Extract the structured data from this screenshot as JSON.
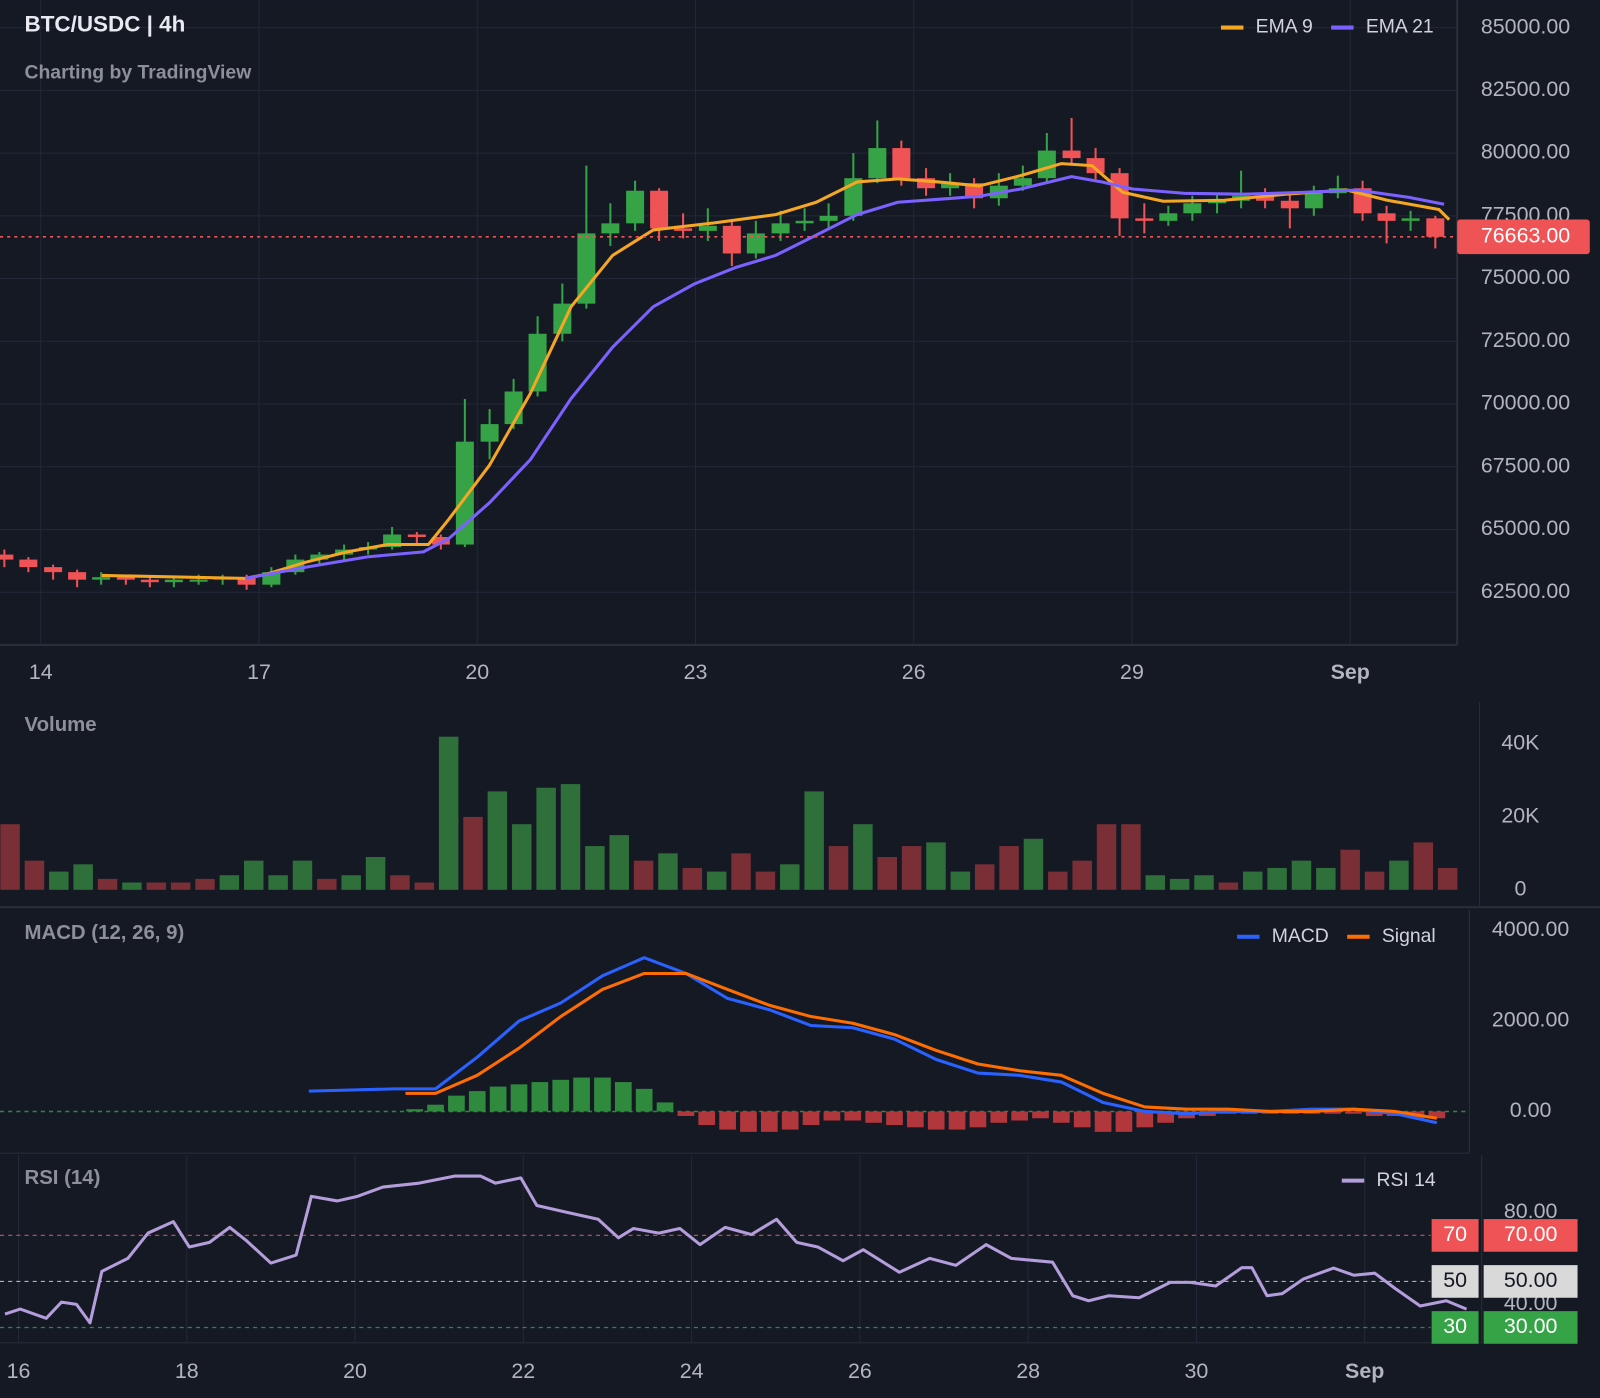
{
  "chart_data": [
    {
      "type": "candlestick",
      "title": "BTC/USDC | 4h",
      "subtitle": "Charting by TradingView",
      "x": [
        13.5,
        13.83,
        14.17,
        14.5,
        14.83,
        15.17,
        15.5,
        15.83,
        16.17,
        16.5,
        16.83,
        17.17,
        17.5,
        17.83,
        18.17,
        18.5,
        18.83,
        19.17,
        19.5,
        19.83,
        20.17,
        20.5,
        20.83,
        21.17,
        21.5,
        21.83,
        22.17,
        22.5,
        22.83,
        23.17,
        23.5,
        23.83,
        24.17,
        24.5,
        24.83,
        25.17,
        25.5,
        25.83,
        26.17,
        26.5,
        26.83,
        27.17,
        27.5,
        27.83,
        28.17,
        28.5,
        28.83,
        29.17,
        29.5,
        29.83,
        30.17,
        30.5,
        30.83,
        31.17,
        31.5,
        31.83,
        32.17,
        32.5,
        32.83,
        33.17
      ],
      "open": [
        64000,
        63800,
        63500,
        63300,
        63000,
        63100,
        63000,
        62900,
        63000,
        63000,
        63100,
        62800,
        63300,
        63800,
        64000,
        64200,
        64300,
        64800,
        64700,
        64400,
        68500,
        69200,
        70500,
        72800,
        74000,
        76800,
        77200,
        78500,
        77000,
        76900,
        77100,
        76000,
        76800,
        77200,
        77300,
        77500,
        79000,
        80200,
        79000,
        78600,
        78800,
        78200,
        78700,
        79000,
        80100,
        79800,
        79200,
        77400,
        77300,
        77600,
        78000,
        78100,
        78300,
        78100,
        77800,
        78400,
        78600,
        77600,
        77300,
        77400
      ],
      "high": [
        64200,
        63900,
        63600,
        63400,
        63300,
        63200,
        63100,
        63100,
        63200,
        63200,
        63200,
        63500,
        64000,
        64100,
        64400,
        64500,
        65100,
        64900,
        64800,
        70200,
        69800,
        71000,
        73500,
        74800,
        79500,
        78000,
        78900,
        78600,
        77600,
        77800,
        77300,
        77300,
        77700,
        77800,
        78000,
        80000,
        81300,
        80500,
        79400,
        79200,
        79000,
        79200,
        79500,
        80800,
        81400,
        80200,
        79400,
        78000,
        77900,
        78300,
        78400,
        79300,
        78600,
        78400,
        78700,
        79100,
        78900,
        77900,
        77700,
        77500
      ],
      "low": [
        63500,
        63300,
        63000,
        62700,
        62800,
        62800,
        62700,
        62700,
        62800,
        62800,
        62600,
        62700,
        63200,
        63600,
        63800,
        64000,
        64200,
        64400,
        64200,
        64300,
        67800,
        69000,
        70300,
        72500,
        73800,
        76300,
        76900,
        76500,
        76600,
        76500,
        75500,
        75800,
        76500,
        76900,
        77000,
        77300,
        78800,
        78700,
        78300,
        78300,
        77800,
        77900,
        78500,
        78800,
        79500,
        78900,
        76700,
        76800,
        77100,
        77300,
        77600,
        77800,
        77800,
        77000,
        77500,
        78200,
        77300,
        76400,
        76900,
        76200
      ],
      "close": [
        63800,
        63500,
        63300,
        63000,
        63100,
        63000,
        62900,
        63000,
        63000,
        63100,
        62800,
        63300,
        63800,
        64000,
        64200,
        64300,
        64800,
        64700,
        64400,
        68500,
        69200,
        70500,
        72800,
        74000,
        76800,
        77200,
        78500,
        77000,
        76900,
        77100,
        76000,
        76800,
        77200,
        77300,
        77500,
        79000,
        80200,
        79000,
        78600,
        78800,
        78200,
        78700,
        79000,
        80100,
        79800,
        79200,
        77400,
        77300,
        77600,
        78000,
        78100,
        78300,
        78100,
        77800,
        78400,
        78600,
        77600,
        77300,
        77400,
        76663
      ],
      "up_color": "#35a346",
      "down_color": "#f05356",
      "series": [
        {
          "name": "EMA 9",
          "color": "#f5a623",
          "x": [
            14.84,
            16.81,
            17.09,
            17.65,
            18.21,
            18.77,
            19.33,
            19.61,
            20.17,
            20.73,
            21.29,
            21.86,
            22.42,
            23.26,
            24.1,
            24.66,
            25.22,
            25.78,
            26.34,
            26.9,
            27.47,
            28.03,
            28.45,
            28.87,
            29.43,
            30.27,
            31.11,
            31.95,
            32.51,
            33.22,
            33.36
          ],
          "values": [
            63170,
            63050,
            63210,
            63700,
            64110,
            64400,
            64400,
            65410,
            67570,
            70420,
            73880,
            75920,
            76940,
            77220,
            77550,
            78040,
            78850,
            78970,
            78850,
            78690,
            79100,
            79580,
            79500,
            78440,
            78080,
            78120,
            78360,
            78530,
            78120,
            77750,
            77350
          ]
        },
        {
          "name": "EMA 21",
          "color": "#7b61ff",
          "x": [
            16.81,
            17.65,
            18.49,
            19.26,
            19.61,
            20.17,
            20.73,
            21.29,
            21.86,
            22.42,
            22.98,
            23.54,
            24.1,
            24.66,
            25.22,
            25.78,
            26.34,
            26.9,
            27.47,
            28.17,
            28.59,
            29.01,
            29.71,
            30.55,
            31.39,
            32.09,
            32.8,
            33.29
          ],
          "values": [
            63050,
            63500,
            63910,
            64110,
            64640,
            66070,
            67780,
            70220,
            72260,
            73880,
            74780,
            75430,
            75920,
            76730,
            77550,
            78040,
            78160,
            78280,
            78570,
            79060,
            78850,
            78570,
            78400,
            78360,
            78440,
            78530,
            78240,
            77960
          ]
        }
      ],
      "last_price": {
        "value": 76663,
        "label": "76663.00"
      },
      "legend": "upper right",
      "grid": true,
      "xlim": [
        13.44,
        33.47
      ],
      "ylim": [
        60400,
        86100
      ],
      "xticks": [
        14,
        17,
        20,
        23,
        26,
        29,
        {
          "value": 32,
          "label": "Sep"
        }
      ],
      "yticks": [
        {
          "value": 62500,
          "label": "62500.00"
        },
        {
          "value": 65000,
          "label": "65000.00"
        },
        {
          "value": 67500,
          "label": "67500.00"
        },
        {
          "value": 70000,
          "label": "70000.00"
        },
        {
          "value": 72500,
          "label": "72500.00"
        },
        {
          "value": 75000,
          "label": "75000.00"
        },
        {
          "value": 77500,
          "label": "77500.00"
        },
        {
          "value": 80000,
          "label": "80000.00"
        },
        {
          "value": 82500,
          "label": "82500.00"
        },
        {
          "value": 85000,
          "label": "85000.00"
        }
      ]
    },
    {
      "type": "bar",
      "title": "Volume",
      "x": [
        15.9,
        16.19,
        16.48,
        16.77,
        17.06,
        17.35,
        17.64,
        17.93,
        18.22,
        18.51,
        18.8,
        19.09,
        19.38,
        19.67,
        19.96,
        20.25,
        20.54,
        20.83,
        21.12,
        21.41,
        21.7,
        21.99,
        22.28,
        22.57,
        22.86,
        23.15,
        23.44,
        23.73,
        24.02,
        24.31,
        24.6,
        24.89,
        25.18,
        25.47,
        25.76,
        26.05,
        26.34,
        26.63,
        26.92,
        27.21,
        27.5,
        27.79,
        28.08,
        28.37,
        28.66,
        28.95,
        29.24,
        29.53,
        29.82,
        30.11,
        30.4,
        30.69,
        30.98,
        31.27,
        31.56,
        31.85,
        32.14,
        32.43,
        32.72,
        33.01
      ],
      "values": [
        18000,
        8000,
        5000,
        7000,
        3000,
        2000,
        2000,
        2000,
        3000,
        4000,
        8000,
        4000,
        8000,
        3000,
        4000,
        9000,
        4000,
        2000,
        42000,
        20000,
        27000,
        18000,
        28000,
        29000,
        12000,
        15000,
        8000,
        10000,
        6000,
        5000,
        10000,
        5000,
        7000,
        27000,
        12000,
        18000,
        9000,
        12000,
        13000,
        5000,
        7000,
        12000,
        14000,
        5000,
        8000,
        18000,
        18000,
        4000,
        3000,
        4000,
        2000,
        5000,
        6000,
        8000,
        6000,
        11000,
        5000,
        8000,
        13000,
        6000
      ],
      "colors": [
        "#7a2e35",
        "#7a2e35",
        "#2f6f3a",
        "#2f6f3a",
        "#7a2e35",
        "#2f6f3a",
        "#7a2e35",
        "#7a2e35",
        "#7a2e35",
        "#2f6f3a",
        "#2f6f3a",
        "#2f6f3a",
        "#2f6f3a",
        "#7a2e35",
        "#2f6f3a",
        "#2f6f3a",
        "#7a2e35",
        "#7a2e35",
        "#2f6f3a",
        "#7a2e35",
        "#2f6f3a",
        "#2f6f3a",
        "#2f6f3a",
        "#2f6f3a",
        "#2f6f3a",
        "#2f6f3a",
        "#7a2e35",
        "#2f6f3a",
        "#7a2e35",
        "#2f6f3a",
        "#7a2e35",
        "#7a2e35",
        "#2f6f3a",
        "#2f6f3a",
        "#7a2e35",
        "#2f6f3a",
        "#7a2e35",
        "#7a2e35",
        "#2f6f3a",
        "#2f6f3a",
        "#7a2e35",
        "#7a2e35",
        "#2f6f3a",
        "#7a2e35",
        "#7a2e35",
        "#7a2e35",
        "#7a2e35",
        "#2f6f3a",
        "#2f6f3a",
        "#2f6f3a",
        "#7a2e35",
        "#2f6f3a",
        "#2f6f3a",
        "#2f6f3a",
        "#2f6f3a",
        "#7a2e35",
        "#7a2e35",
        "#2f6f3a",
        "#7a2e35",
        "#7a2e35"
      ],
      "xlim": [
        15.78,
        33.39
      ],
      "ylim": [
        0,
        51500
      ],
      "yticks": [
        0,
        {
          "value": 20000,
          "label": "20K"
        },
        {
          "value": 40000,
          "label": "40K"
        }
      ]
    },
    {
      "type": "line",
      "title": "MACD (12, 26, 9)",
      "series": [
        {
          "name": "MACD",
          "color": "#2962ff",
          "x": [
            19.48,
            20.5,
            21.0,
            21.5,
            22.0,
            22.5,
            23.0,
            23.5,
            24.0,
            24.5,
            25.0,
            25.5,
            26.0,
            26.5,
            27.0,
            27.5,
            28.0,
            28.5,
            29.0,
            29.5,
            30.0,
            30.5,
            31.0,
            31.5,
            32.0,
            32.5,
            33.0
          ],
          "values": [
            450,
            500,
            500,
            1200,
            2000,
            2400,
            3000,
            3400,
            3050,
            2500,
            2250,
            1900,
            1850,
            1600,
            1150,
            850,
            800,
            650,
            200,
            0,
            -50,
            0,
            0,
            50,
            50,
            -50,
            -250
          ]
        },
        {
          "name": "Signal",
          "color": "#ff6d00",
          "x": [
            20.64,
            21.0,
            21.5,
            22.0,
            22.5,
            23.0,
            23.5,
            24.0,
            24.5,
            25.0,
            25.5,
            26.0,
            26.5,
            27.0,
            27.5,
            28.0,
            28.5,
            29.0,
            29.5,
            30.0,
            30.5,
            31.0,
            31.5,
            32.0,
            32.5,
            33.0
          ],
          "values": [
            400,
            400,
            800,
            1400,
            2100,
            2700,
            3050,
            3050,
            2700,
            2350,
            2100,
            1950,
            1700,
            1350,
            1050,
            900,
            800,
            400,
            100,
            50,
            50,
            0,
            0,
            50,
            0,
            -150
          ]
        }
      ],
      "histogram": {
        "up_color": "#2f8a3e",
        "down_color": "#b2373c",
        "x": [
          20.75,
          21.0,
          21.25,
          21.5,
          21.75,
          22.0,
          22.25,
          22.5,
          22.75,
          23.0,
          23.25,
          23.5,
          23.75,
          24.0,
          24.25,
          24.5,
          24.75,
          25.0,
          25.25,
          25.5,
          25.75,
          26.0,
          26.25,
          26.5,
          26.75,
          27.0,
          27.25,
          27.5,
          27.75,
          28.0,
          28.25,
          28.5,
          28.75,
          29.0,
          29.25,
          29.5,
          29.75,
          30.0,
          30.25,
          30.5,
          30.75,
          31.0,
          31.25,
          31.5,
          31.75,
          32.0,
          32.25,
          32.5,
          32.75,
          33.0
        ],
        "values": [
          50,
          150,
          350,
          450,
          550,
          600,
          650,
          700,
          750,
          750,
          650,
          500,
          200,
          -100,
          -300,
          -400,
          -450,
          -450,
          -400,
          -300,
          -200,
          -200,
          -250,
          -300,
          -350,
          -400,
          -400,
          -350,
          -250,
          -200,
          -150,
          -250,
          -350,
          -450,
          -450,
          -350,
          -250,
          -150,
          -100,
          -50,
          -50,
          -50,
          -50,
          -50,
          -50,
          -50,
          -100,
          -100,
          -150,
          -150
        ]
      },
      "legend": "upper right",
      "xlim": [
        15.78,
        33.39
      ],
      "ylim": [
        -920,
        4450
      ],
      "yticks": [
        {
          "value": 0,
          "label": "0.00"
        },
        {
          "value": 2000,
          "label": "2000.00"
        },
        {
          "value": 4000,
          "label": "4000.00"
        }
      ]
    },
    {
      "type": "line",
      "title": "RSI (14)",
      "series": [
        {
          "name": "RSI 14",
          "color": "#b39ddb",
          "x": [
            15.84,
            16.02,
            16.33,
            16.51,
            16.69,
            16.85,
            16.99,
            17.3,
            17.54,
            17.84,
            18.03,
            18.27,
            18.51,
            18.7,
            19.0,
            19.3,
            19.48,
            19.79,
            20.03,
            20.33,
            20.76,
            21.19,
            21.49,
            21.67,
            21.97,
            22.16,
            22.52,
            22.89,
            23.13,
            23.31,
            23.61,
            23.86,
            24.1,
            24.4,
            24.71,
            25.01,
            25.25,
            25.5,
            25.8,
            26.04,
            26.47,
            26.83,
            27.14,
            27.5,
            27.8,
            28.29,
            28.53,
            28.72,
            28.96,
            29.32,
            29.69,
            29.93,
            30.23,
            30.54,
            30.66,
            30.84,
            31.02,
            31.27,
            31.63,
            31.87,
            32.12,
            32.36,
            32.66,
            32.97,
            33.21
          ],
          "values": [
            35.8,
            38,
            34,
            41,
            40,
            32,
            54.4,
            60,
            71,
            76,
            65,
            67,
            73.5,
            68,
            58,
            61.5,
            87,
            85,
            87,
            91,
            92.7,
            95.8,
            95.8,
            92.7,
            95,
            83,
            80,
            77,
            69,
            73,
            71,
            73,
            66,
            73.5,
            70.4,
            77,
            67,
            65,
            59,
            63.8,
            54,
            60,
            57,
            66,
            60,
            58.4,
            43.8,
            41.6,
            43.8,
            42.9,
            49.6,
            49.6,
            48,
            56,
            56,
            43.8,
            44.7,
            51,
            55.8,
            52.7,
            53.6,
            47,
            39.3,
            41.6,
            38
          ]
        }
      ],
      "levels": [
        {
          "value": 70,
          "label": "70.00",
          "color": "#f05356",
          "text_color": "#ffffff"
        },
        {
          "value": 50,
          "label": "50.00",
          "color": "#d9d9d9",
          "text_color": "#131722"
        },
        {
          "value": 30,
          "label": "30.00",
          "color": "#35a346",
          "text_color": "#ffffff"
        }
      ],
      "legend": "upper right",
      "grid": true,
      "xlim": [
        15.78,
        33.39
      ],
      "ylim": [
        23.3,
        104.9
      ],
      "xticks": [
        16,
        18,
        20,
        22,
        24,
        26,
        28,
        30,
        {
          "value": 32,
          "label": "Sep"
        }
      ],
      "yticks": [
        {
          "value": 40,
          "label": "40.00"
        },
        {
          "value": 80,
          "label": "80.00"
        }
      ]
    }
  ]
}
